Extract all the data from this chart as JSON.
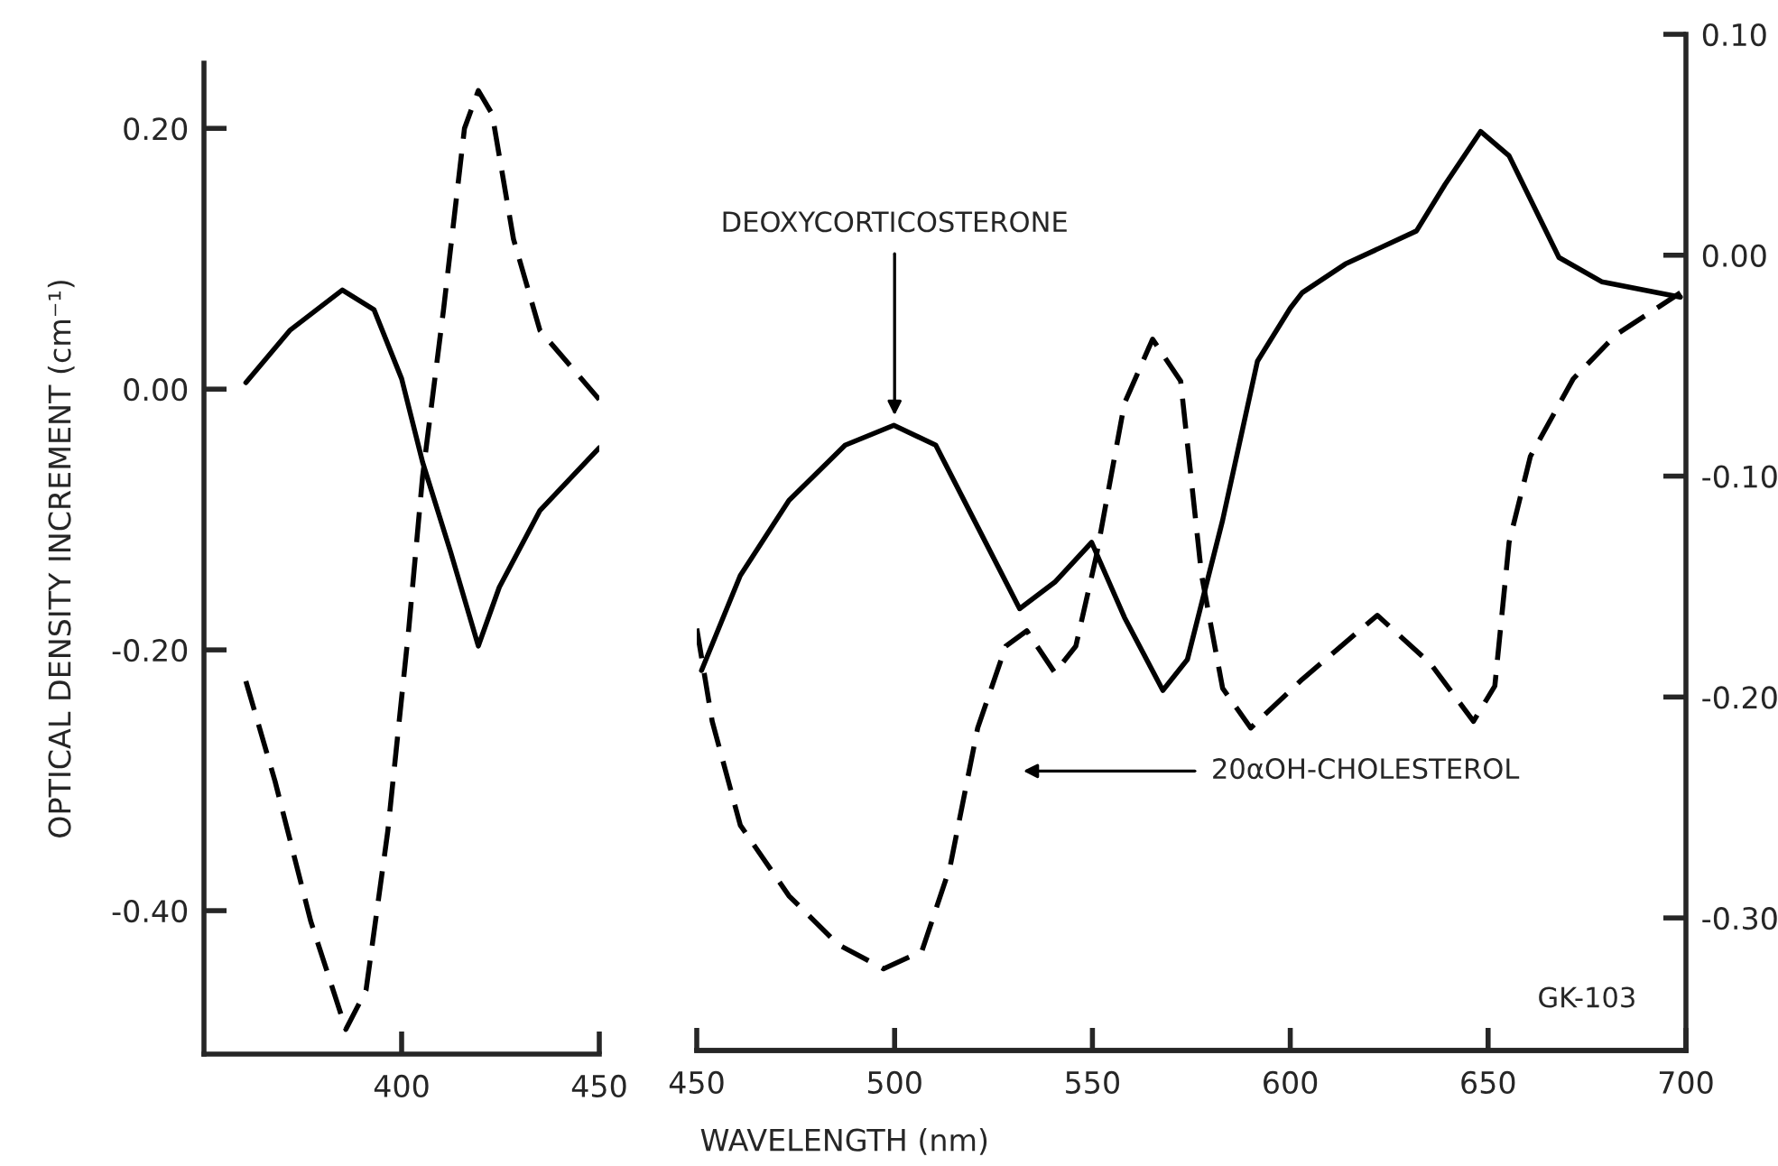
{
  "chart_data": [
    {
      "type": "line",
      "ylabel": "OPTICAL DENSITY INCREMENT (cm⁻¹)",
      "xlim": [
        350,
        450
      ],
      "xticks": [
        400,
        450
      ],
      "ylim": [
        -0.51,
        0.25
      ],
      "yticks": [
        {
          "value": 0.2,
          "label": "0.20"
        },
        {
          "value": 0.0,
          "label": "0.00"
        },
        {
          "value": -0.2,
          "label": "-0.20"
        },
        {
          "value": -0.4,
          "label": "-0.40"
        }
      ],
      "legend": false,
      "grid": false,
      "series": [
        {
          "color": "#000000",
          "line_style": "solid",
          "x": [
            360.6,
            371.7,
            385,
            393,
            400,
            405.3,
            412.4,
            419.4,
            424.7,
            435,
            450
          ],
          "values": [
            0.005,
            0.045,
            0.076,
            0.061,
            0.008,
            -0.056,
            -0.125,
            -0.197,
            -0.152,
            -0.093,
            -0.045
          ]
        },
        {
          "color": "#000000",
          "line_style": "dashed",
          "x": [
            360.6,
            368,
            377,
            385.9,
            391,
            396.5,
            401.8,
            405.3,
            410.6,
            415.9,
            419.4,
            422.9,
            428.3,
            435,
            450
          ],
          "values": [
            -0.224,
            -0.301,
            -0.408,
            -0.491,
            -0.461,
            -0.339,
            -0.184,
            -0.067,
            0.061,
            0.2,
            0.229,
            0.211,
            0.115,
            0.045,
            -0.008
          ]
        }
      ]
    },
    {
      "type": "line",
      "xlabel": "WAVELENGTH (nm)",
      "xlim": [
        450,
        700
      ],
      "xticks": [
        450,
        500,
        550,
        600,
        650,
        700
      ],
      "y2lim": [
        -0.36,
        0.1
      ],
      "y2ticks": [
        {
          "value": 0.1,
          "label": "0.10"
        },
        {
          "value": 0.0,
          "label": "0.00"
        },
        {
          "value": -0.1,
          "label": "-0.10"
        },
        {
          "value": -0.2,
          "label": "-0.20"
        },
        {
          "value": -0.3,
          "label": "-0.30"
        }
      ],
      "legend": false,
      "grid": false,
      "annotations": [
        "DEOXYCORTICOSTERONE",
        "20αOH-CHOLESTEROL",
        "GK-103"
      ],
      "series": [
        {
          "color": "#000000",
          "line_style": "solid",
          "axis": "y2",
          "x": [
            451.2,
            461,
            473.3,
            487.5,
            499.8,
            510.4,
            521,
            531.6,
            540.5,
            549.8,
            558.1,
            567.8,
            574,
            582.9,
            591.7,
            600,
            603,
            613.9,
            631.9,
            639.1,
            648.1,
            655.3,
            667.9,
            678.7,
            698.6
          ],
          "values": [
            -0.188,
            -0.145,
            -0.111,
            -0.086,
            -0.077,
            -0.086,
            -0.123,
            -0.16,
            -0.148,
            -0.13,
            -0.164,
            -0.197,
            -0.183,
            -0.12,
            -0.048,
            -0.024,
            -0.017,
            -0.004,
            0.011,
            0.032,
            0.056,
            0.045,
            -0.001,
            -0.012,
            -0.019
          ]
        },
        {
          "color": "#000000",
          "line_style": "dashed",
          "axis": "y2",
          "x": [
            450,
            453.9,
            461,
            473.3,
            485.7,
            497.2,
            506.9,
            514,
            521,
            528.1,
            533.4,
            540.5,
            545.8,
            551,
            558.1,
            565.2,
            572.3,
            577.6,
            582.9,
            590,
            603,
            622,
            635.5,
            646.3,
            651.7,
            655.3,
            660.7,
            671.5,
            682.3,
            698.6
          ],
          "values": [
            -0.169,
            -0.211,
            -0.258,
            -0.29,
            -0.312,
            -0.323,
            -0.315,
            -0.277,
            -0.214,
            -0.177,
            -0.17,
            -0.189,
            -0.177,
            -0.136,
            -0.067,
            -0.038,
            -0.057,
            -0.145,
            -0.196,
            -0.214,
            -0.192,
            -0.163,
            -0.185,
            -0.211,
            -0.195,
            -0.13,
            -0.091,
            -0.056,
            -0.036,
            -0.017
          ]
        }
      ]
    }
  ]
}
